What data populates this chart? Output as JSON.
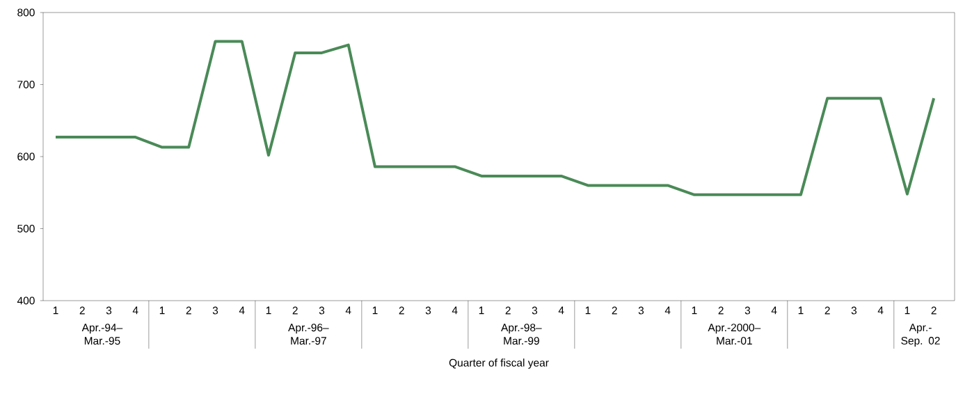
{
  "chart_data": {
    "type": "line",
    "xlabel": "Quarter of fiscal year",
    "categories": [
      "1",
      "2",
      "3",
      "4",
      "1",
      "2",
      "3",
      "4",
      "1",
      "2",
      "3",
      "4",
      "1",
      "2",
      "3",
      "4",
      "1",
      "2",
      "3",
      "4",
      "1",
      "2",
      "3",
      "4",
      "1",
      "2",
      "3",
      "4",
      "1",
      "2",
      "3",
      "4",
      "1",
      "2"
    ],
    "values": [
      627,
      627,
      627,
      627,
      613,
      613,
      760,
      760,
      602,
      744,
      744,
      755,
      586,
      586,
      586,
      586,
      573,
      573,
      573,
      573,
      560,
      560,
      560,
      560,
      547,
      547,
      547,
      547,
      547,
      681,
      681,
      681,
      548,
      681
    ],
    "color": "#4a8a57",
    "ylim": [
      400,
      800
    ],
    "yticks": [
      400,
      500,
      600,
      700,
      800
    ],
    "grid": false,
    "marker": "none",
    "line_style": "solid",
    "annotations": [
      "Apr.-94– Mar.-95",
      "Apr.-96– Mar.-97",
      "Apr.-98– Mar.-99",
      "Apr.-2000– Mar.-01",
      "Apr.- Sep. 02"
    ]
  }
}
